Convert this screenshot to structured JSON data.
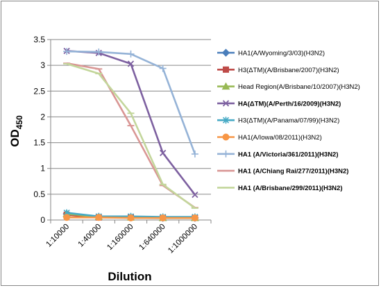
{
  "chart_data": {
    "type": "line",
    "xlabel": "Dilution",
    "ylabel_main": "OD",
    "ylabel_sub": "450",
    "ylim": [
      0,
      3.5
    ],
    "yticks": [
      "0",
      "0.5",
      "1",
      "1.5",
      "2",
      "2.5",
      "3",
      "3.5"
    ],
    "categories": [
      "1:10000",
      "1:40000",
      "1:160000",
      "1:640000",
      "1:1000000"
    ],
    "grid": "horizontal",
    "legend_position": "right",
    "series": [
      {
        "name": "HA1(A/Wyoming/3/03)(H3N2)",
        "color": "#4A7EBB",
        "marker": "diamond",
        "bold": false,
        "values": [
          0.12,
          0.06,
          0.05,
          0.04,
          0.04
        ]
      },
      {
        "name": "H3(ΔTM)(A/Brisbane/2007)(H3N2)",
        "color": "#BE4B48",
        "marker": "square",
        "bold": false,
        "values": [
          0.1,
          0.05,
          0.05,
          0.04,
          0.04
        ]
      },
      {
        "name": "Head Region(A/Brisbane/10/2007)(H3N2)",
        "color": "#98B954",
        "marker": "triangle",
        "bold": false,
        "values": [
          0.12,
          0.06,
          0.05,
          0.04,
          0.04
        ]
      },
      {
        "name": "HA(ΔTM)(A/Perth/16/2009)(H3N2)",
        "color": "#7D60A0",
        "marker": "x",
        "bold": true,
        "values": [
          3.28,
          3.24,
          3.03,
          1.3,
          0.49
        ]
      },
      {
        "name": "H3(ΔTM)(A/Panama/07/99)(H3N2)",
        "color": "#46AAC5",
        "marker": "star",
        "bold": false,
        "values": [
          0.14,
          0.07,
          0.07,
          0.06,
          0.06
        ]
      },
      {
        "name": "HA1(A/Iowa/08/2011)(H3N2)",
        "color": "#F79646",
        "marker": "circle",
        "bold": false,
        "values": [
          0.05,
          0.05,
          0.04,
          0.04,
          0.04
        ]
      },
      {
        "name": "HA1 (A/Victoria/361/2011)(H3N2)",
        "color": "#95B3D7",
        "marker": "plus",
        "bold": true,
        "values": [
          3.27,
          3.26,
          3.22,
          2.94,
          1.28
        ]
      },
      {
        "name": "HA1 (A/Chiang Rai/277/2011)(H3N2)",
        "color": "#D99694",
        "marker": "dash",
        "bold": true,
        "values": [
          3.04,
          2.93,
          1.83,
          0.67,
          0.24
        ]
      },
      {
        "name": "HA1 (A/Brisbane/299/2011)(H3N2)",
        "color": "#C3D69B",
        "marker": "dash",
        "bold": true,
        "values": [
          3.03,
          2.84,
          2.07,
          0.69,
          0.23
        ]
      }
    ]
  }
}
